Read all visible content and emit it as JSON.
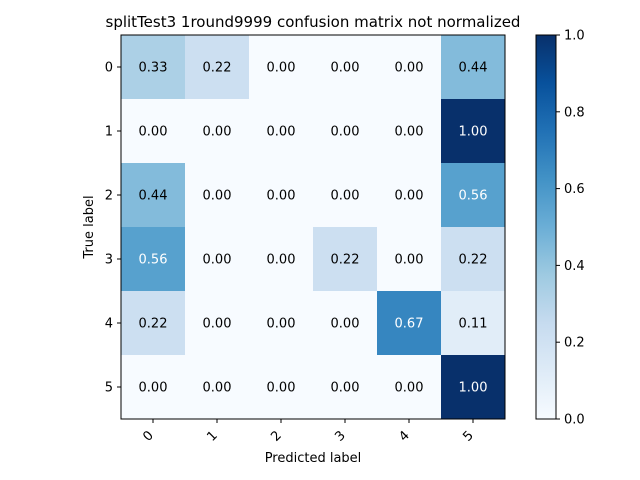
{
  "chart_data": {
    "type": "heatmap",
    "title": "splitTest3 1round9999 confusion matrix not normalized",
    "xlabel": "Predicted label",
    "ylabel": "True label",
    "x_categories": [
      "0",
      "1",
      "2",
      "3",
      "4",
      "5"
    ],
    "y_categories": [
      "0",
      "1",
      "2",
      "3",
      "4",
      "5"
    ],
    "values": [
      [
        0.33,
        0.22,
        0.0,
        0.0,
        0.0,
        0.44
      ],
      [
        0.0,
        0.0,
        0.0,
        0.0,
        0.0,
        1.0
      ],
      [
        0.44,
        0.0,
        0.0,
        0.0,
        0.0,
        0.56
      ],
      [
        0.56,
        0.0,
        0.0,
        0.22,
        0.0,
        0.22
      ],
      [
        0.22,
        0.0,
        0.0,
        0.0,
        0.67,
        0.11
      ],
      [
        0.0,
        0.0,
        0.0,
        0.0,
        0.0,
        1.0
      ]
    ],
    "value_format": "0.00",
    "colormap": "Blues",
    "colorbar": {
      "range": [
        0.0,
        1.0
      ],
      "ticks": [
        "0.0",
        "0.2",
        "0.4",
        "0.6",
        "0.8",
        "1.0"
      ]
    },
    "x_tick_rotation": "45 degrees",
    "grid": false
  }
}
